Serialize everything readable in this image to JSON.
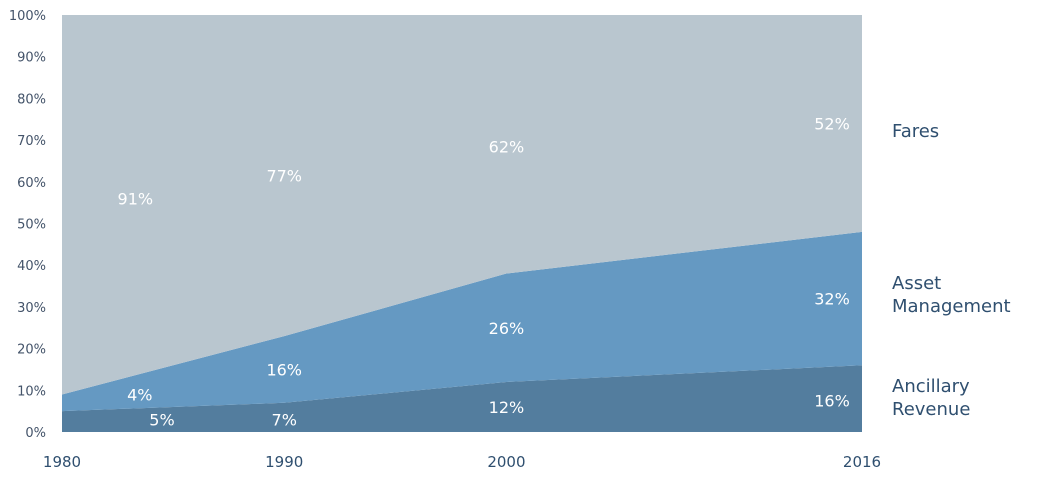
{
  "chart_data": {
    "type": "area",
    "stacked": true,
    "x": [
      1980,
      1990,
      2000,
      2016
    ],
    "x_tick_labels": [
      "1980",
      "1990",
      "2000",
      "2016"
    ],
    "y_tick_labels": [
      "0%",
      "10%",
      "20%",
      "30%",
      "40%",
      "50%",
      "60%",
      "70%",
      "80%",
      "90%",
      "100%"
    ],
    "ylim": [
      0,
      100
    ],
    "grid": false,
    "legend_placement": "right",
    "series": [
      {
        "name": "Ancillary Revenue",
        "values": [
          5,
          7,
          12,
          16
        ],
        "color": "#537d9e",
        "point_labels": [
          {
            "x": 1984.5,
            "y": 3,
            "text": "5%"
          },
          {
            "x": 1990,
            "y": 3,
            "text": "7%"
          },
          {
            "x": 2000,
            "y": 6,
            "text": "12%"
          },
          {
            "x": 2016,
            "y": 7.5,
            "text": "16%"
          }
        ]
      },
      {
        "name": "Asset Management",
        "values": [
          4,
          16,
          26,
          32
        ],
        "color": "#6599c2",
        "point_labels": [
          {
            "x": 1983.5,
            "y": 9,
            "text": "4%"
          },
          {
            "x": 1990,
            "y": 15,
            "text": "16%"
          },
          {
            "x": 2000,
            "y": 25,
            "text": "26%"
          },
          {
            "x": 2016,
            "y": 32,
            "text": "32%"
          }
        ]
      },
      {
        "name": "Fares",
        "values": [
          91,
          77,
          62,
          52
        ],
        "color": "#b9c6cf",
        "point_labels": [
          {
            "x": 1983.3,
            "y": 56,
            "text": "91%"
          },
          {
            "x": 1990,
            "y": 61.5,
            "text": "77%"
          },
          {
            "x": 2000,
            "y": 68.5,
            "text": "62%"
          },
          {
            "x": 2016,
            "y": 74,
            "text": "52%"
          }
        ]
      }
    ]
  },
  "legend": [
    {
      "text": "Fares"
    },
    {
      "text": "Asset\nManagement"
    },
    {
      "text": "Ancillary\nRevenue"
    }
  ]
}
